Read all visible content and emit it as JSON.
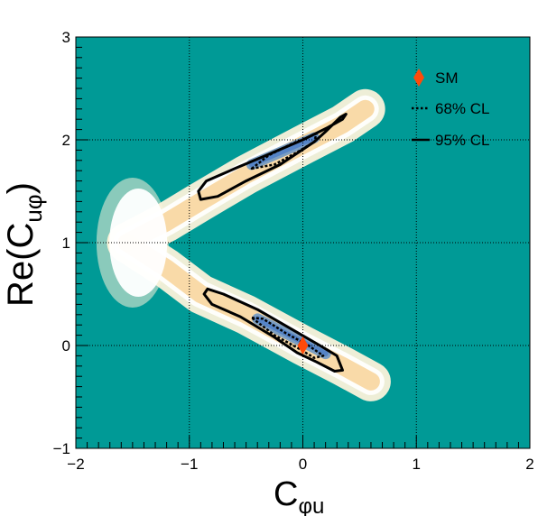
{
  "chart_data": {
    "type": "heatmap",
    "title": "",
    "xlabel_main": "C",
    "xlabel_sub": "φu",
    "ylabel_main": "Re(C",
    "ylabel_sub": "uφ",
    "ylabel_close": ")",
    "xlim": [
      -2,
      2
    ],
    "ylim": [
      -1,
      3
    ],
    "x_major_ticks": [
      -2,
      -1,
      0,
      1,
      2
    ],
    "y_major_ticks": [
      -1,
      0,
      1,
      2,
      3
    ],
    "x_tick_labels": [
      "−2",
      "−1",
      "0",
      "1",
      "2"
    ],
    "y_tick_labels": [
      "−1",
      "0",
      "1",
      "2",
      "3"
    ],
    "grid": true,
    "legend_position": "top-right",
    "legend": [
      {
        "label": "SM",
        "marker": "diamond",
        "color": "#ff4a0a"
      },
      {
        "label": "68% CL",
        "line": "dotted",
        "color": "#000000"
      },
      {
        "label": "95% CL",
        "line": "solid",
        "color": "#000000"
      }
    ],
    "sm_point": {
      "x": 0.0,
      "y": 0.0
    },
    "colors": {
      "background": "#009a96",
      "level_1": "#ffffff",
      "level_2": "#fbf2da",
      "level_3": "#f8d69f",
      "level_4": "#7d9fc2",
      "level_5": "#4d7fc8",
      "sm": "#ff4a0a"
    },
    "band_ridge": {
      "upper": [
        {
          "x": -1.55,
          "y": 1.0
        },
        {
          "x": -1.2,
          "y": 1.2
        },
        {
          "x": -0.9,
          "y": 1.4
        },
        {
          "x": -0.5,
          "y": 1.66
        },
        {
          "x": 0.0,
          "y": 1.95
        },
        {
          "x": 0.35,
          "y": 2.15
        },
        {
          "x": 0.55,
          "y": 2.3
        }
      ],
      "lower": [
        {
          "x": -1.55,
          "y": 1.0
        },
        {
          "x": -1.2,
          "y": 0.75
        },
        {
          "x": -0.9,
          "y": 0.5
        },
        {
          "x": -0.5,
          "y": 0.3
        },
        {
          "x": 0.0,
          "y": 0.0
        },
        {
          "x": 0.35,
          "y": -0.2
        },
        {
          "x": 0.6,
          "y": -0.35
        }
      ]
    },
    "contours_95": [
      [
        {
          "x": -0.92,
          "y": 1.5
        },
        {
          "x": -0.85,
          "y": 1.6
        },
        {
          "x": -0.6,
          "y": 1.72
        },
        {
          "x": -0.3,
          "y": 1.86
        },
        {
          "x": 0.0,
          "y": 2.0
        },
        {
          "x": 0.22,
          "y": 2.12
        },
        {
          "x": 0.35,
          "y": 2.2
        },
        {
          "x": 0.38,
          "y": 2.25
        },
        {
          "x": 0.33,
          "y": 2.22
        },
        {
          "x": 0.2,
          "y": 2.08
        },
        {
          "x": 0.1,
          "y": 1.98
        },
        {
          "x": -0.2,
          "y": 1.76
        },
        {
          "x": -0.5,
          "y": 1.6
        },
        {
          "x": -0.75,
          "y": 1.45
        },
        {
          "x": -0.9,
          "y": 1.42
        },
        {
          "x": -0.92,
          "y": 1.5
        }
      ],
      [
        {
          "x": -0.87,
          "y": 0.5
        },
        {
          "x": -0.84,
          "y": 0.55
        },
        {
          "x": -0.7,
          "y": 0.5
        },
        {
          "x": -0.4,
          "y": 0.35
        },
        {
          "x": -0.1,
          "y": 0.16
        },
        {
          "x": 0.15,
          "y": 0.0
        },
        {
          "x": 0.3,
          "y": -0.1
        },
        {
          "x": 0.35,
          "y": -0.24
        },
        {
          "x": 0.28,
          "y": -0.25
        },
        {
          "x": 0.12,
          "y": -0.16
        },
        {
          "x": -0.05,
          "y": -0.07
        },
        {
          "x": -0.25,
          "y": 0.08
        },
        {
          "x": -0.55,
          "y": 0.28
        },
        {
          "x": -0.8,
          "y": 0.4
        },
        {
          "x": -0.87,
          "y": 0.5
        }
      ]
    ],
    "contours_68": [
      [
        {
          "x": -0.45,
          "y": 1.72
        },
        {
          "x": -0.3,
          "y": 1.85
        },
        {
          "x": -0.1,
          "y": 1.96
        },
        {
          "x": 0.12,
          "y": 2.06
        },
        {
          "x": 0.1,
          "y": 1.98
        },
        {
          "x": -0.05,
          "y": 1.88
        },
        {
          "x": -0.25,
          "y": 1.76
        },
        {
          "x": -0.45,
          "y": 1.72
        }
      ],
      [
        {
          "x": -0.45,
          "y": 0.27
        },
        {
          "x": -0.35,
          "y": 0.26
        },
        {
          "x": -0.15,
          "y": 0.12
        },
        {
          "x": 0.05,
          "y": 0.0
        },
        {
          "x": 0.18,
          "y": -0.1
        },
        {
          "x": 0.1,
          "y": -0.12
        },
        {
          "x": -0.05,
          "y": -0.02
        },
        {
          "x": -0.25,
          "y": 0.1
        },
        {
          "x": -0.45,
          "y": 0.27
        }
      ]
    ]
  }
}
